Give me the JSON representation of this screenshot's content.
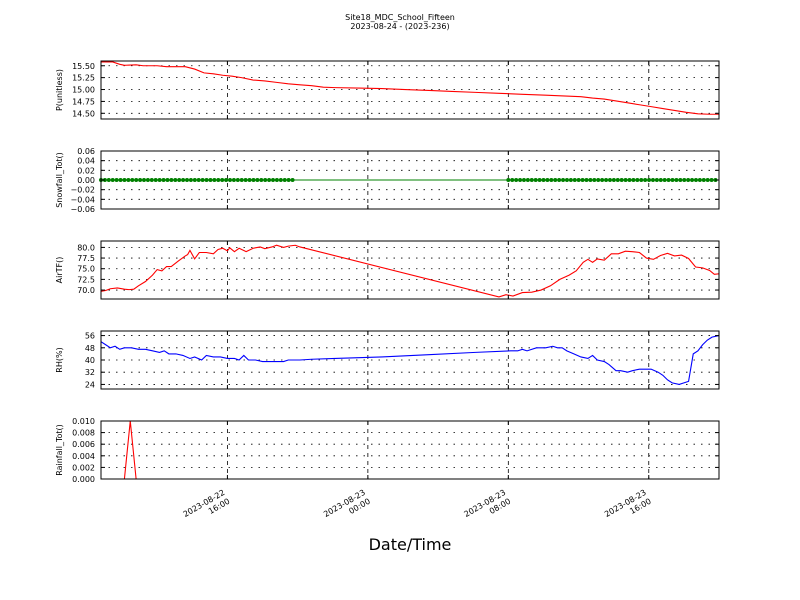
{
  "figure": {
    "title_line1": "Site18_MDC_School_Fifteen",
    "title_line2": "2023-08-24 - (2023-236)",
    "xlabel": "Date/Time"
  },
  "chart_data": [
    {
      "type": "line",
      "ylabel": "P(unitless)",
      "ylim": [
        14.38,
        15.6
      ],
      "yticks": [
        "15.50",
        "15.25",
        "15.00",
        "14.75",
        "14.50"
      ],
      "grid": true,
      "color": "#ff0000",
      "x_range_hours": [
        0,
        26.4
      ],
      "points": [
        [
          0,
          15.58
        ],
        [
          0.5,
          15.58
        ],
        [
          0.8,
          15.53
        ],
        [
          1.0,
          15.51
        ],
        [
          1.5,
          15.52
        ],
        [
          1.8,
          15.5
        ],
        [
          2.0,
          15.5
        ],
        [
          2.4,
          15.5
        ],
        [
          2.8,
          15.48
        ],
        [
          3.2,
          15.48
        ],
        [
          3.6,
          15.48
        ],
        [
          4.0,
          15.43
        ],
        [
          4.4,
          15.35
        ],
        [
          4.8,
          15.33
        ],
        [
          5.2,
          15.3
        ],
        [
          5.6,
          15.28
        ],
        [
          6.0,
          15.25
        ],
        [
          6.5,
          15.2
        ],
        [
          7.0,
          15.18
        ],
        [
          7.5,
          15.15
        ],
        [
          8.0,
          15.12
        ],
        [
          8.5,
          15.1
        ],
        [
          9.0,
          15.08
        ],
        [
          9.5,
          15.05
        ],
        [
          10.0,
          15.04
        ],
        [
          11.0,
          15.03
        ],
        [
          12.0,
          15.02
        ],
        [
          13.0,
          15.0
        ],
        [
          14.0,
          14.98
        ],
        [
          15.0,
          14.96
        ],
        [
          16.0,
          14.94
        ],
        [
          17.0,
          14.92
        ],
        [
          18.0,
          14.9
        ],
        [
          19.0,
          14.88
        ],
        [
          20.0,
          14.86
        ],
        [
          20.5,
          14.85
        ],
        [
          21.0,
          14.82
        ],
        [
          21.5,
          14.8
        ],
        [
          22.0,
          14.76
        ],
        [
          22.5,
          14.72
        ],
        [
          23.0,
          14.68
        ],
        [
          23.5,
          14.64
        ],
        [
          24.0,
          14.6
        ],
        [
          24.5,
          14.56
        ],
        [
          25.0,
          14.52
        ],
        [
          25.5,
          14.49
        ],
        [
          26.0,
          14.48
        ],
        [
          26.4,
          14.48
        ]
      ]
    },
    {
      "type": "line",
      "ylabel": "Snowfall_Tot()",
      "ylim": [
        -0.06,
        0.06
      ],
      "yticks": [
        "0.06",
        "0.04",
        "0.02",
        "0.00",
        "−0.02",
        "−0.04",
        "−0.06"
      ],
      "grid": true,
      "color": "#008000",
      "x_range_hours": [
        0,
        26.4
      ],
      "line_value": 0.0,
      "marker_ranges_hours": [
        [
          0,
          8.2
        ],
        [
          17.4,
          26.4
        ]
      ],
      "marker_step_hours": 0.167
    },
    {
      "type": "line",
      "ylabel": "AirTF()",
      "ylim": [
        67.9,
        81.5
      ],
      "yticks": [
        "80.0",
        "77.5",
        "75.0",
        "72.5",
        "70.0"
      ],
      "grid": true,
      "color": "#ff0000",
      "x_range_hours": [
        0,
        26.4
      ],
      "points": [
        [
          0,
          69.7
        ],
        [
          0.2,
          69.9
        ],
        [
          0.4,
          70.3
        ],
        [
          0.7,
          70.5
        ],
        [
          1.0,
          70.2
        ],
        [
          1.2,
          70.1
        ],
        [
          1.4,
          70.2
        ],
        [
          1.6,
          71.0
        ],
        [
          1.9,
          72.0
        ],
        [
          2.2,
          73.5
        ],
        [
          2.4,
          74.8
        ],
        [
          2.6,
          74.5
        ],
        [
          2.8,
          75.5
        ],
        [
          3.0,
          75.5
        ],
        [
          3.3,
          76.8
        ],
        [
          3.6,
          78.0
        ],
        [
          3.7,
          78.3
        ],
        [
          3.8,
          79.3
        ],
        [
          4.0,
          77.3
        ],
        [
          4.2,
          78.8
        ],
        [
          4.5,
          78.8
        ],
        [
          4.8,
          78.5
        ],
        [
          5.0,
          79.5
        ],
        [
          5.2,
          79.8
        ],
        [
          5.4,
          79.2
        ],
        [
          5.5,
          79.9
        ],
        [
          5.7,
          79.0
        ],
        [
          5.9,
          79.8
        ],
        [
          6.2,
          79.0
        ],
        [
          6.5,
          79.8
        ],
        [
          6.8,
          80.1
        ],
        [
          7.0,
          79.7
        ],
        [
          7.3,
          80.1
        ],
        [
          7.5,
          80.5
        ],
        [
          7.8,
          80.0
        ],
        [
          8.0,
          80.3
        ],
        [
          8.3,
          80.5
        ],
        [
          8.5,
          80.1
        ],
        [
          8.8,
          79.7
        ],
        [
          17.0,
          68.4
        ],
        [
          17.3,
          68.9
        ],
        [
          17.6,
          68.6
        ],
        [
          18.0,
          69.4
        ],
        [
          18.4,
          69.5
        ],
        [
          18.8,
          70.0
        ],
        [
          19.2,
          71.0
        ],
        [
          19.6,
          72.5
        ],
        [
          20.0,
          73.5
        ],
        [
          20.3,
          74.5
        ],
        [
          20.6,
          76.5
        ],
        [
          20.8,
          77.2
        ],
        [
          21.0,
          76.5
        ],
        [
          21.2,
          77.3
        ],
        [
          21.5,
          77.0
        ],
        [
          21.8,
          78.5
        ],
        [
          22.1,
          78.5
        ],
        [
          22.4,
          79.1
        ],
        [
          22.7,
          79.0
        ],
        [
          23.0,
          78.8
        ],
        [
          23.3,
          77.5
        ],
        [
          23.6,
          77.2
        ],
        [
          23.9,
          78.1
        ],
        [
          24.2,
          78.6
        ],
        [
          24.5,
          78.0
        ],
        [
          24.8,
          78.2
        ],
        [
          25.1,
          77.4
        ],
        [
          25.4,
          75.4
        ],
        [
          25.7,
          75.2
        ],
        [
          26.0,
          74.6
        ],
        [
          26.2,
          73.7
        ],
        [
          26.4,
          73.8
        ]
      ]
    },
    {
      "type": "line",
      "ylabel": "RH(%)",
      "ylim": [
        21,
        59
      ],
      "yticks": [
        "56",
        "48",
        "40",
        "32",
        "24"
      ],
      "grid": true,
      "color": "#0000ff",
      "x_range_hours": [
        0,
        26.4
      ],
      "points": [
        [
          0,
          52.0
        ],
        [
          0.2,
          50.0
        ],
        [
          0.4,
          48.0
        ],
        [
          0.6,
          49.0
        ],
        [
          0.8,
          47.0
        ],
        [
          1.0,
          48.0
        ],
        [
          1.3,
          48.0
        ],
        [
          1.6,
          47.0
        ],
        [
          1.9,
          47.0
        ],
        [
          2.2,
          46.0
        ],
        [
          2.5,
          45.0
        ],
        [
          2.7,
          46.0
        ],
        [
          2.9,
          44.0
        ],
        [
          3.2,
          44.0
        ],
        [
          3.5,
          43.0
        ],
        [
          3.8,
          41.0
        ],
        [
          4.0,
          42.0
        ],
        [
          4.3,
          40.0
        ],
        [
          4.5,
          43.0
        ],
        [
          4.8,
          42.0
        ],
        [
          5.1,
          42.0
        ],
        [
          5.4,
          41.0
        ],
        [
          5.7,
          41.0
        ],
        [
          5.9,
          40.0
        ],
        [
          6.1,
          43.0
        ],
        [
          6.3,
          40.0
        ],
        [
          6.6,
          40.0
        ],
        [
          6.9,
          39.0
        ],
        [
          7.2,
          39.0
        ],
        [
          7.5,
          39.0
        ],
        [
          7.8,
          39.0
        ],
        [
          8.0,
          40.0
        ],
        [
          8.2,
          40.0
        ],
        [
          8.5,
          40.0
        ],
        [
          9.0,
          40.5
        ],
        [
          10.0,
          41.0
        ],
        [
          12.0,
          42.0
        ],
        [
          14.0,
          43.5
        ],
        [
          16.0,
          45.0
        ],
        [
          17.5,
          46.0
        ],
        [
          17.8,
          46.0
        ],
        [
          18.0,
          47.0
        ],
        [
          18.2,
          46.0
        ],
        [
          18.6,
          48.0
        ],
        [
          19.0,
          48.0
        ],
        [
          19.3,
          49.0
        ],
        [
          19.5,
          48.0
        ],
        [
          19.7,
          48.0
        ],
        [
          19.9,
          46.0
        ],
        [
          20.2,
          44.0
        ],
        [
          20.5,
          42.0
        ],
        [
          20.8,
          41.0
        ],
        [
          21.0,
          43.0
        ],
        [
          21.2,
          40.0
        ],
        [
          21.5,
          39.0
        ],
        [
          21.7,
          37.0
        ],
        [
          22.0,
          33.0
        ],
        [
          22.2,
          33.0
        ],
        [
          22.5,
          32.0
        ],
        [
          22.7,
          33.0
        ],
        [
          23.0,
          34.0
        ],
        [
          23.2,
          34.0
        ],
        [
          23.5,
          34.0
        ],
        [
          23.8,
          32.0
        ],
        [
          24.0,
          30.0
        ],
        [
          24.2,
          27.0
        ],
        [
          24.4,
          25.0
        ],
        [
          24.7,
          24.0
        ],
        [
          24.9,
          25.0
        ],
        [
          25.1,
          26.0
        ],
        [
          25.3,
          44.0
        ],
        [
          25.5,
          46.0
        ],
        [
          25.7,
          50.0
        ],
        [
          25.9,
          53.0
        ],
        [
          26.1,
          55.0
        ],
        [
          26.4,
          56.0
        ]
      ]
    },
    {
      "type": "line",
      "ylabel": "Rainfall_Tot()",
      "ylim": [
        0,
        0.01
      ],
      "yticks": [
        "0.010",
        "0.008",
        "0.006",
        "0.004",
        "0.002",
        "0.000"
      ],
      "grid": true,
      "color": "#ff0000",
      "x_range_hours": [
        0,
        26.4
      ],
      "points": [
        [
          0,
          0
        ],
        [
          1.0,
          0
        ],
        [
          1.25,
          0.01
        ],
        [
          1.5,
          0
        ],
        [
          26.4,
          0
        ]
      ]
    }
  ],
  "xticks": [
    {
      "hour": 5.4,
      "line1": "2023-08-22",
      "line2": "16:00"
    },
    {
      "hour": 11.4,
      "line1": "2023-08-23",
      "line2": "00:00"
    },
    {
      "hour": 17.4,
      "line1": "2023-08-23",
      "line2": "08:00"
    },
    {
      "hour": 23.4,
      "line1": "2023-08-23",
      "line2": "16:00"
    }
  ]
}
